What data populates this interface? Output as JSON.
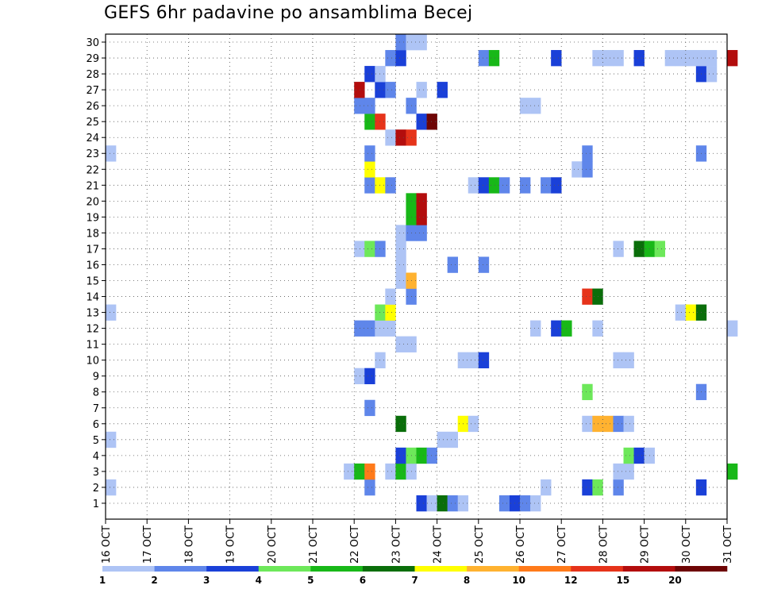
{
  "chart_data": {
    "type": "heatmap",
    "title": "GEFS 6hr padavine po ansamblima Becej",
    "x_labels": [
      "16 OCT",
      "17 OCT",
      "18 OCT",
      "19 OCT",
      "20 OCT",
      "21 OCT",
      "22 OCT",
      "23 OCT",
      "24 OCT",
      "25 OCT",
      "26 OCT",
      "27 OCT",
      "28 OCT",
      "29 OCT",
      "30 OCT",
      "31 OCT"
    ],
    "y_range": [
      0,
      30
    ],
    "y_ticks": [
      1,
      2,
      3,
      4,
      5,
      6,
      7,
      8,
      9,
      10,
      11,
      12,
      13,
      14,
      15,
      16,
      17,
      18,
      19,
      20,
      21,
      22,
      23,
      24,
      25,
      26,
      27,
      28,
      29,
      30
    ],
    "step_hours": 6,
    "grid": true,
    "legend": {
      "position": "bottom",
      "labels": [
        "1",
        "2",
        "3",
        "4",
        "5",
        "6",
        "7",
        "8",
        "10",
        "12",
        "15",
        "20"
      ],
      "colors": [
        "#aec4f5",
        "#5f86ea",
        "#1a40d8",
        "#6de85a",
        "#18b818",
        "#0a6e0a",
        "#ffff00",
        "#ffb230",
        "#ff7a1a",
        "#e6331a",
        "#b30d0d",
        "#6e0505"
      ]
    },
    "cells": [
      [
        0,
        0,
        23.0,
        4
      ],
      [
        0,
        0,
        24.0,
        5
      ],
      [
        0,
        0,
        28.5,
        1
      ],
      [
        0,
        0,
        30.5,
        3
      ],
      [
        0,
        0,
        30.25,
        1
      ],
      [
        1,
        23.5,
        3
      ],
      [
        1,
        23.75,
        1
      ],
      [
        1,
        24.0,
        6
      ],
      [
        1,
        24.25,
        2
      ],
      [
        1,
        24.5,
        1
      ],
      [
        1,
        25.5,
        2
      ],
      [
        1,
        25.75,
        3
      ],
      [
        1,
        26.0,
        2
      ],
      [
        1,
        26.25,
        1
      ],
      [
        2,
        16.0,
        1
      ],
      [
        2,
        22.25,
        2
      ],
      [
        2,
        26.5,
        1
      ],
      [
        2,
        27.5,
        3
      ],
      [
        2,
        27.75,
        4
      ],
      [
        2,
        28.25,
        2
      ],
      [
        2,
        30.25,
        3
      ],
      [
        3,
        21.75,
        1
      ],
      [
        3,
        22.0,
        5
      ],
      [
        3,
        22.25,
        10
      ],
      [
        3,
        22.75,
        1
      ],
      [
        3,
        23.0,
        5
      ],
      [
        3,
        23.25,
        1
      ],
      [
        3,
        28.25,
        1
      ],
      [
        3,
        28.5,
        1
      ],
      [
        3,
        31.0,
        5
      ],
      [
        4,
        23.0,
        3
      ],
      [
        4,
        23.25,
        4
      ],
      [
        4,
        23.5,
        5
      ],
      [
        4,
        23.75,
        2
      ],
      [
        4,
        28.5,
        4
      ],
      [
        4,
        28.75,
        3
      ],
      [
        4,
        29.0,
        1
      ],
      [
        5,
        16.0,
        1
      ],
      [
        5,
        24.0,
        1
      ],
      [
        5,
        24.25,
        1
      ],
      [
        6,
        23.0,
        6
      ],
      [
        6,
        24.5,
        7
      ],
      [
        6,
        24.75,
        1
      ],
      [
        6,
        27.5,
        1
      ],
      [
        6,
        27.75,
        8
      ],
      [
        6,
        28.0,
        8
      ],
      [
        6,
        28.25,
        2
      ],
      [
        6,
        28.5,
        1
      ],
      [
        7,
        22.25,
        2
      ],
      [
        8,
        27.5,
        4
      ],
      [
        8,
        30.25,
        2
      ],
      [
        9,
        22.0,
        1
      ],
      [
        9,
        22.25,
        3
      ],
      [
        10,
        22.5,
        1
      ],
      [
        10,
        24.5,
        1
      ],
      [
        10,
        24.75,
        1
      ],
      [
        10,
        25.0,
        3
      ],
      [
        10,
        28.25,
        1
      ],
      [
        10,
        28.5,
        1
      ],
      [
        11,
        23.0,
        1
      ],
      [
        11,
        23.25,
        1
      ],
      [
        12,
        22.0,
        2
      ],
      [
        12,
        22.25,
        2
      ],
      [
        12,
        22.5,
        1
      ],
      [
        12,
        22.75,
        1
      ],
      [
        12,
        26.25,
        1
      ],
      [
        12,
        26.75,
        3
      ],
      [
        12,
        27.0,
        5
      ],
      [
        12,
        27.75,
        1
      ],
      [
        12,
        31.0,
        1
      ],
      [
        13,
        16.0,
        1
      ],
      [
        13,
        22.5,
        4
      ],
      [
        13,
        22.75,
        7
      ],
      [
        13,
        29.75,
        1
      ],
      [
        13,
        30.0,
        7
      ],
      [
        13,
        30.25,
        6
      ],
      [
        14,
        22.75,
        1
      ],
      [
        14,
        23.25,
        2
      ],
      [
        14,
        27.5,
        12
      ],
      [
        14,
        27.75,
        6
      ],
      [
        15,
        23.0,
        1
      ],
      [
        15,
        23.25,
        8
      ],
      [
        16,
        23.0,
        1
      ],
      [
        16,
        24.25,
        2
      ],
      [
        16,
        25.0,
        2
      ],
      [
        17,
        22.0,
        1
      ],
      [
        17,
        22.25,
        4
      ],
      [
        17,
        22.5,
        2
      ],
      [
        17,
        23.0,
        1
      ],
      [
        17,
        28.25,
        1
      ],
      [
        17,
        28.75,
        6
      ],
      [
        17,
        29.0,
        5
      ],
      [
        17,
        29.25,
        4
      ],
      [
        18,
        23.0,
        1
      ],
      [
        18,
        23.25,
        2
      ],
      [
        18,
        23.5,
        2
      ],
      [
        19,
        23.25,
        5
      ],
      [
        19,
        23.5,
        15
      ],
      [
        20,
        23.25,
        5
      ],
      [
        20,
        23.5,
        15
      ],
      [
        21,
        22.25,
        2
      ],
      [
        21,
        22.5,
        7
      ],
      [
        21,
        22.75,
        2
      ],
      [
        21,
        24.75,
        1
      ],
      [
        21,
        25.0,
        3
      ],
      [
        21,
        25.25,
        5
      ],
      [
        21,
        25.5,
        2
      ],
      [
        21,
        26.0,
        2
      ],
      [
        21,
        26.5,
        2
      ],
      [
        21,
        26.75,
        3
      ],
      [
        22,
        22.25,
        7
      ],
      [
        22,
        27.25,
        1
      ],
      [
        22,
        27.5,
        2
      ],
      [
        23,
        16.0,
        1
      ],
      [
        23,
        22.25,
        2
      ],
      [
        23,
        27.5,
        2
      ],
      [
        23,
        30.25,
        2
      ],
      [
        24,
        22.75,
        1
      ],
      [
        24,
        23.0,
        15
      ],
      [
        24,
        23.25,
        12
      ],
      [
        25,
        22.25,
        5
      ],
      [
        25,
        22.5,
        12
      ],
      [
        25,
        23.5,
        3
      ],
      [
        25,
        23.75,
        20
      ],
      [
        26,
        22.0,
        2
      ],
      [
        26,
        22.25,
        2
      ],
      [
        26,
        23.25,
        2
      ],
      [
        26,
        26.0,
        1
      ],
      [
        26,
        26.25,
        1
      ],
      [
        27,
        22.0,
        15
      ],
      [
        27,
        22.5,
        3
      ],
      [
        27,
        22.75,
        2
      ],
      [
        27,
        23.5,
        1
      ],
      [
        27,
        24.0,
        3
      ],
      [
        28,
        22.25,
        3
      ],
      [
        28,
        22.5,
        1
      ],
      [
        28,
        30.25,
        3
      ],
      [
        28,
        30.5,
        1
      ],
      [
        29,
        22.75,
        2
      ],
      [
        29,
        23.0,
        3
      ],
      [
        29,
        25.0,
        2
      ],
      [
        29,
        25.25,
        5
      ],
      [
        29,
        26.75,
        3
      ],
      [
        29,
        27.75,
        1
      ],
      [
        29,
        28.0,
        1
      ],
      [
        29,
        28.25,
        1
      ],
      [
        29,
        28.75,
        3
      ],
      [
        29,
        29.5,
        1
      ],
      [
        29,
        29.75,
        1
      ],
      [
        29,
        30.0,
        1
      ],
      [
        29,
        30.25,
        1
      ],
      [
        29,
        30.5,
        1
      ],
      [
        29,
        31.0,
        15
      ],
      [
        30,
        23.0,
        2
      ],
      [
        30,
        23.25,
        1
      ],
      [
        30,
        23.5,
        1
      ]
    ]
  }
}
